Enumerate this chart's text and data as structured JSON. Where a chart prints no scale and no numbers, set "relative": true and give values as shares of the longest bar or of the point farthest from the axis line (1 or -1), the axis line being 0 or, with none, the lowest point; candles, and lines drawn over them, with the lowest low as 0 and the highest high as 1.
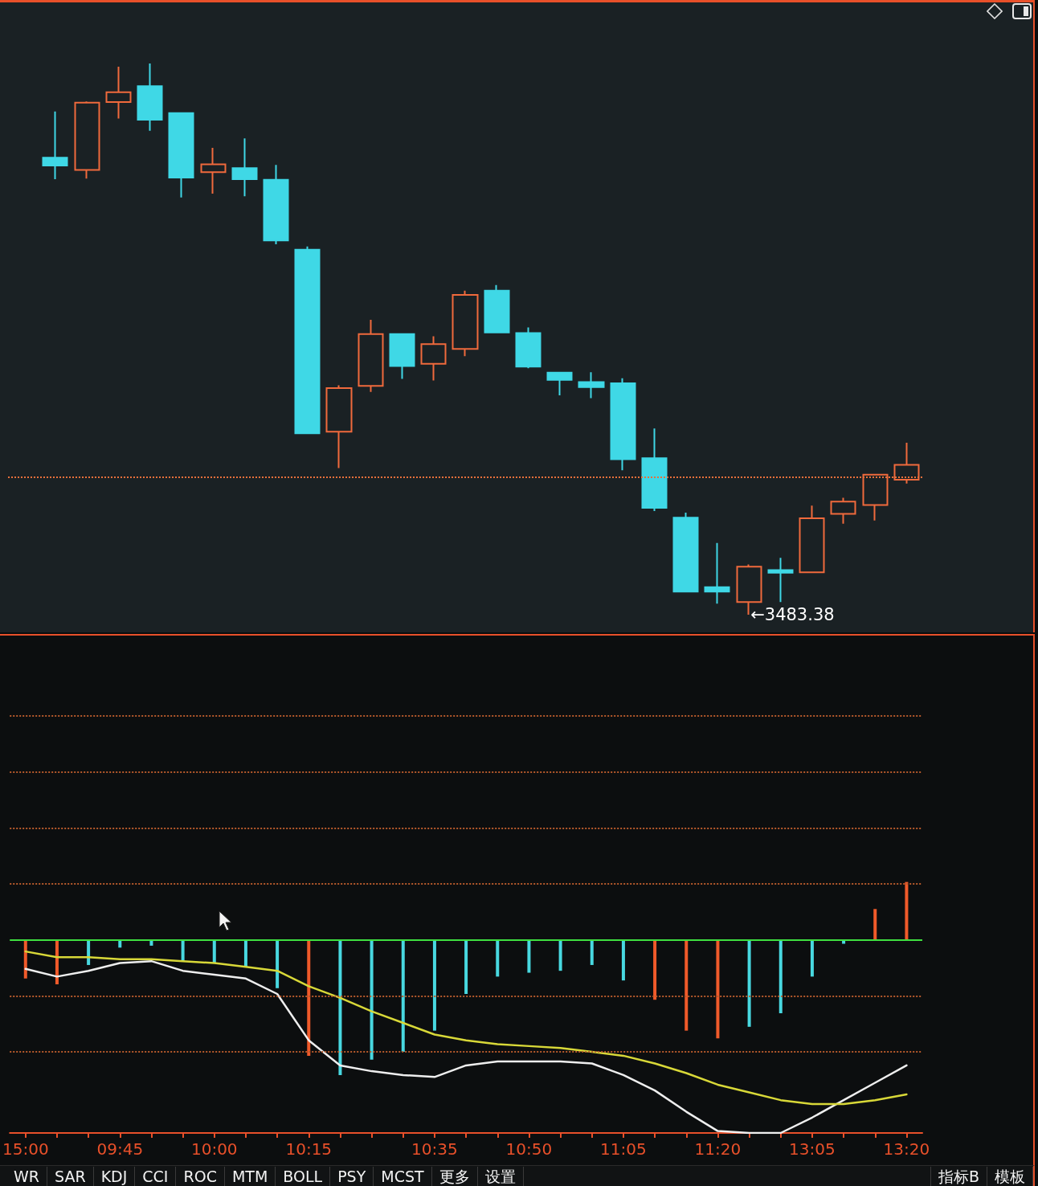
{
  "chart_data": [
    {
      "type": "candlestick",
      "relative": true,
      "tick_labels": false,
      "categories": [
        null,
        null,
        null,
        null,
        null,
        null,
        null,
        null,
        null,
        null,
        null,
        null,
        null,
        null,
        null,
        null,
        null,
        null,
        null,
        null,
        null,
        null,
        null,
        null,
        null,
        null,
        null,
        null,
        null
      ],
      "ohlc": [
        null,
        [
          0.829,
          0.913,
          0.79,
          0.815
        ],
        [
          0.807,
          0.931,
          0.791,
          0.929
        ],
        [
          0.93,
          0.994,
          0.9,
          0.948
        ],
        [
          0.959,
          1.0,
          0.878,
          0.898
        ],
        [
          0.91,
          0.91,
          0.757,
          0.793
        ],
        [
          0.803,
          0.847,
          0.764,
          0.817
        ],
        [
          0.81,
          0.864,
          0.759,
          0.79
        ],
        [
          0.789,
          0.816,
          0.672,
          0.679
        ],
        [
          0.662,
          0.668,
          0.329,
          0.329
        ],
        [
          0.332,
          0.416,
          0.266,
          0.411
        ],
        [
          0.415,
          0.535,
          0.404,
          0.509
        ],
        [
          0.509,
          0.509,
          0.428,
          0.451
        ],
        [
          0.455,
          0.505,
          0.425,
          0.491
        ],
        [
          0.482,
          0.588,
          0.469,
          0.58
        ],
        [
          0.588,
          0.598,
          0.512,
          0.512
        ],
        [
          0.511,
          0.521,
          0.447,
          0.45
        ],
        [
          0.439,
          0.439,
          0.398,
          0.426
        ],
        [
          0.422,
          0.44,
          0.393,
          0.413
        ],
        [
          0.42,
          0.429,
          0.262,
          0.282
        ],
        [
          0.284,
          0.338,
          0.188,
          0.194
        ],
        [
          0.176,
          0.185,
          0.042,
          0.042
        ],
        [
          0.05,
          0.13,
          0.02,
          0.042
        ],
        [
          0.023,
          0.091,
          0,
          0.087
        ],
        [
          0.081,
          0.103,
          0.023,
          0.076
        ],
        [
          0.077,
          0.198,
          0.077,
          0.175
        ],
        [
          0.183,
          0.212,
          0.165,
          0.205
        ],
        [
          0.199,
          0.255,
          0.171,
          0.254
        ],
        [
          0.245,
          0.312,
          0.238,
          0.272
        ]
      ],
      "colors": [
        null,
        "#3fd8e6",
        "#f06a3c",
        "#f06a3c",
        "#3fd8e6",
        "#3fd8e6",
        "#f06a3c",
        "#3fd8e6",
        "#3fd8e6",
        "#3fd8e6",
        "#f06a3c",
        "#f06a3c",
        "#3fd8e6",
        "#f06a3c",
        "#f06a3c",
        "#3fd8e6",
        "#3fd8e6",
        "#3fd8e6",
        "#3fd8e6",
        "#3fd8e6",
        "#3fd8e6",
        "#3fd8e6",
        "#3fd8e6",
        "#f06a3c",
        "#3fd8e6",
        "#f06a3c",
        "#f06a3c",
        "#f06a3c",
        "#f06a3c"
      ],
      "ref_lines": [
        {
          "axis": "y",
          "value": 0.25,
          "color": "#e8703a",
          "line_style": "dotted"
        }
      ],
      "annotations": [
        "←3483.38"
      ]
    },
    {
      "type": "bar",
      "relative": true,
      "marker": "none",
      "categories": [
        "15:00",
        null,
        null,
        "09:45",
        null,
        null,
        "10:00",
        null,
        null,
        "10:15",
        null,
        null,
        null,
        "10:35",
        null,
        null,
        "10:50",
        null,
        null,
        "11:05",
        null,
        null,
        "11:20",
        null,
        null,
        "13:05",
        null,
        null,
        "13:20"
      ],
      "series": [
        {
          "type": "bar",
          "values": [
            -0.2,
            -0.23,
            -0.13,
            -0.04,
            -0.03,
            -0.11,
            -0.12,
            -0.14,
            -0.25,
            -0.6,
            -0.7,
            -0.62,
            -0.58,
            -0.47,
            -0.28,
            -0.19,
            -0.17,
            -0.16,
            -0.13,
            -0.21,
            -0.31,
            -0.47,
            -0.51,
            -0.45,
            -0.38,
            -0.19,
            -0.02,
            0.16,
            0.3
          ],
          "colors": [
            "#f05a2a",
            "#f05a2a",
            "#48d8e0",
            "#48d8e0",
            "#48d8e0",
            "#48d8e0",
            "#48d8e0",
            "#48d8e0",
            "#48d8e0",
            "#f05a2a",
            "#48d8e0",
            "#48d8e0",
            "#48d8e0",
            "#48d8e0",
            "#48d8e0",
            "#48d8e0",
            "#48d8e0",
            "#48d8e0",
            "#48d8e0",
            "#48d8e0",
            "#f05a2a",
            "#f05a2a",
            "#f05a2a",
            "#48d8e0",
            "#48d8e0",
            "#48d8e0",
            "#48d8e0",
            "#f05a2a",
            "#f05a2a"
          ]
        },
        {
          "type": "line",
          "color": "#eeeeee",
          "values": [
            -0.15,
            -0.19,
            -0.16,
            -0.12,
            -0.11,
            -0.16,
            -0.18,
            -0.2,
            -0.28,
            -0.52,
            -0.65,
            -0.68,
            -0.7,
            -0.71,
            -0.65,
            -0.63,
            -0.63,
            -0.63,
            -0.64,
            -0.7,
            -0.78,
            -0.89,
            -0.99,
            -1.0,
            -1.0,
            -0.92,
            -0.83,
            -0.74,
            -0.65
          ]
        },
        {
          "type": "line",
          "color": "#d8d838",
          "values": [
            -0.06,
            -0.09,
            -0.09,
            -0.1,
            -0.1,
            -0.11,
            -0.12,
            -0.14,
            -0.16,
            -0.24,
            -0.3,
            -0.37,
            -0.43,
            -0.49,
            -0.52,
            -0.54,
            -0.55,
            -0.56,
            -0.58,
            -0.6,
            -0.64,
            -0.69,
            -0.75,
            -0.79,
            -0.83,
            -0.85,
            -0.85,
            -0.83,
            -0.8
          ]
        }
      ],
      "ref_lines": [
        {
          "axis": "y",
          "value": 0,
          "color": "#3fe040"
        },
        {
          "axis": "y",
          "value": 1.16,
          "color": "#b65a2c",
          "line_style": "dotted"
        },
        {
          "axis": "y",
          "value": 0.87,
          "color": "#b65a2c",
          "line_style": "dotted"
        },
        {
          "axis": "y",
          "value": 0.58,
          "color": "#b65a2c",
          "line_style": "dotted"
        },
        {
          "axis": "y",
          "value": 0.29,
          "color": "#b65a2c",
          "line_style": "dotted"
        },
        {
          "axis": "y",
          "value": -0.29,
          "color": "#b65a2c",
          "line_style": "dotted"
        },
        {
          "axis": "y",
          "value": -0.58,
          "color": "#b65a2c",
          "line_style": "dotted"
        }
      ]
    },
    {
      "type": "other",
      "annotations": [
        "WR",
        "SAR",
        "KDJ",
        "CCI",
        "ROC",
        "MTM",
        "BOLL",
        "PSY",
        "MCST",
        "更多",
        "设置",
        "指标B",
        "模板"
      ]
    }
  ]
}
